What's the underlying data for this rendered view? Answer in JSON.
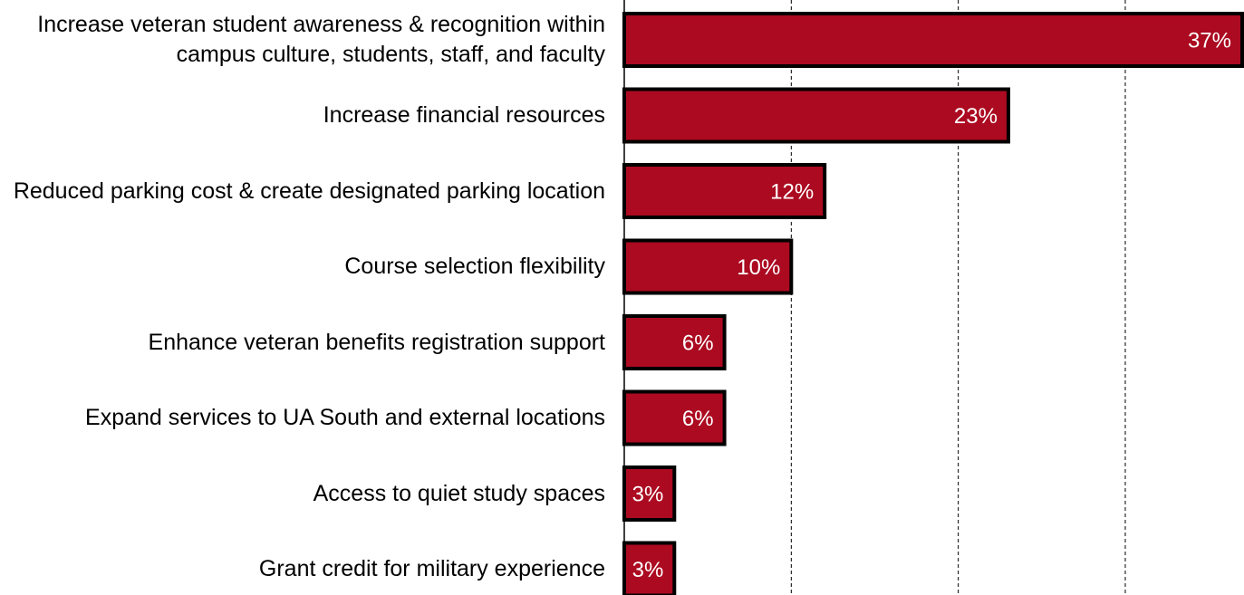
{
  "chart_data": {
    "type": "bar",
    "orientation": "horizontal",
    "categories": [
      "Increase veteran student awareness & recognition within campus culture, students, staff, and faculty",
      "Increase financial resources",
      "Reduced parking cost & create designated parking location",
      "Course selection flexibility",
      "Enhance veteran benefits registration support",
      "Expand services to UA South and external locations",
      "Access to quiet study spaces",
      "Grant credit for military experience"
    ],
    "values": [
      37,
      23,
      12,
      10,
      6,
      6,
      3,
      3
    ],
    "value_labels": [
      "37%",
      "23%",
      "12%",
      "10%",
      "6%",
      "6%",
      "3%",
      "3%"
    ],
    "color": "#ab0a20",
    "xlim": [
      0,
      37
    ],
    "xticks": [
      0,
      10,
      20,
      30
    ],
    "grid": true
  }
}
